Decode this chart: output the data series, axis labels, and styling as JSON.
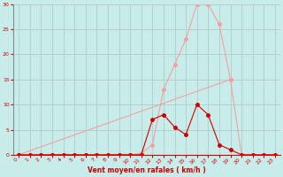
{
  "title": "",
  "xlabel": "Vent moyen/en rafales ( km/h )",
  "xlim": [
    -0.5,
    23.5
  ],
  "ylim": [
    0,
    30
  ],
  "yticks": [
    0,
    5,
    10,
    15,
    20,
    25,
    30
  ],
  "xticks": [
    0,
    1,
    2,
    3,
    4,
    5,
    6,
    7,
    8,
    9,
    10,
    11,
    12,
    13,
    14,
    15,
    16,
    17,
    18,
    19,
    20,
    21,
    22,
    23
  ],
  "bg_color": "#c8ecea",
  "grid_color": "#b0ccca",
  "line1_color": "#f4a0a0",
  "line2_color": "#cc0000",
  "line1_x": [
    0,
    1,
    2,
    3,
    4,
    5,
    6,
    7,
    8,
    9,
    10,
    11,
    12,
    13,
    14,
    15,
    16,
    17,
    18,
    19,
    20,
    21,
    22,
    23
  ],
  "line1_y": [
    0,
    0,
    0,
    0,
    0,
    0,
    0,
    0,
    0,
    0,
    0,
    0.3,
    2,
    13,
    18,
    23,
    30,
    30,
    26,
    15,
    0,
    0,
    0,
    0
  ],
  "line2_x": [
    0,
    1,
    2,
    3,
    4,
    5,
    6,
    7,
    8,
    9,
    10,
    11,
    12,
    13,
    14,
    15,
    16,
    17,
    18,
    19,
    20,
    21,
    22,
    23
  ],
  "line2_y": [
    0,
    0,
    0,
    0,
    0,
    0,
    0,
    0,
    0,
    0,
    0,
    0,
    7,
    8,
    5.5,
    4,
    10,
    8,
    2,
    1,
    0,
    0,
    0,
    0
  ],
  "line3_x": [
    0,
    19
  ],
  "line3_y": [
    0,
    15
  ],
  "marker_size": 2.5,
  "linewidth": 0.8
}
